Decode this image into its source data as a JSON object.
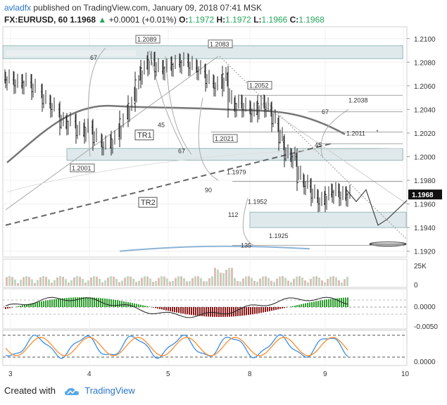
{
  "header": {
    "user": "avladfx",
    "published": " published on TradingView.com, January 09, 2018 07:41 MSK"
  },
  "symbol_bar": {
    "symbol": "FX:EURUSD, 60",
    "last": "1.1968",
    "change": "+0.0001 (+0.01%)",
    "open_label": "O:",
    "open": "1.1972",
    "high_label": "H:",
    "high": "1.1972",
    "low_label": "L:",
    "low": "1.1966",
    "close_label": "C:",
    "close": "1.1968"
  },
  "footer": {
    "created_with": "Created with",
    "brand": "TradingView"
  },
  "colors": {
    "up": "#26a65b",
    "down": "#8b1a1a",
    "macd_pos": "#2e9e2e",
    "stoch_k": "#3a8ee6",
    "stoch_d": "#ff8c2a",
    "price_label_bg": "#111111",
    "zone_fill": "#dfe9ec"
  },
  "chart_data": [
    {
      "type": "candlestick",
      "ylim": [
        1.1915,
        1.211
      ],
      "y_ticks": [
        "1.2100",
        "1.2080",
        "1.2060",
        "1.2040",
        "1.2020",
        "1.2000",
        "1.1980",
        "1.1960",
        "1.1940",
        "1.1920"
      ],
      "x_ticks": [
        "3",
        "4",
        "5",
        "8",
        "9",
        "10"
      ],
      "current_price_label": "1.1968",
      "price_labels": [
        "1.2089",
        "1.2083",
        "1.2052",
        "1.2038",
        "1.2021",
        "1.2011",
        "1.2001",
        "1.1979",
        "1.1952",
        "1.1925"
      ],
      "annotations": [
        "67",
        "67",
        "45",
        "67",
        "45",
        "90",
        "112",
        "135",
        "TR1",
        "TR2"
      ]
    },
    {
      "type": "bar",
      "name": "volume",
      "y_ticks": [
        "25K",
        "0"
      ]
    },
    {
      "type": "bar",
      "name": "macd",
      "y_ticks": [
        "0.0000",
        "-0.0050"
      ]
    },
    {
      "type": "line",
      "name": "stochastic",
      "y_ticks": [
        "0.0000"
      ]
    }
  ]
}
